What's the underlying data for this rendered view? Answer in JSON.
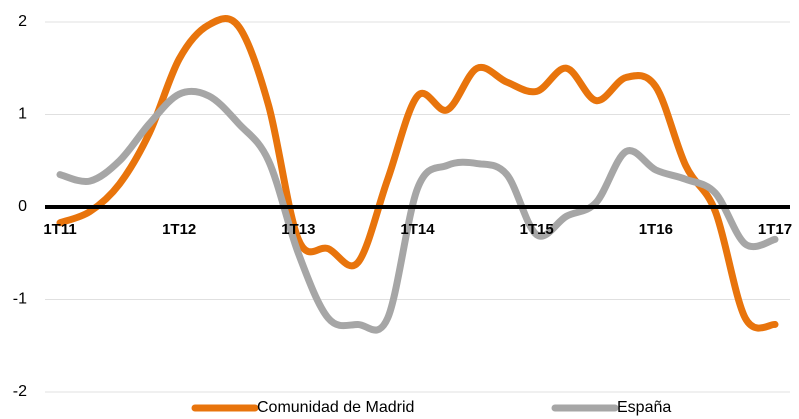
{
  "chart_data": {
    "type": "line",
    "categories": [
      "1T11",
      null,
      null,
      null,
      "1T12",
      null,
      null,
      null,
      "1T13",
      null,
      null,
      null,
      "1T14",
      null,
      null,
      null,
      "1T15",
      null,
      null,
      null,
      "1T16",
      null,
      null,
      null,
      "1T17"
    ],
    "series": [
      {
        "name": "Comunidad de Madrid",
        "color": "#e8740c",
        "values": [
          -0.17,
          -0.05,
          0.25,
          0.8,
          1.6,
          1.97,
          1.95,
          1.1,
          -0.35,
          -0.45,
          -0.6,
          0.3,
          1.2,
          1.05,
          1.5,
          1.35,
          1.25,
          1.5,
          1.15,
          1.4,
          1.3,
          0.45,
          -0.05,
          -1.2,
          -1.27
        ]
      },
      {
        "name": "España",
        "color": "#a6a6a6",
        "values": [
          0.35,
          0.28,
          0.5,
          0.9,
          1.22,
          1.2,
          0.9,
          0.5,
          -0.5,
          -1.2,
          -1.27,
          -1.2,
          0.2,
          0.45,
          0.47,
          0.35,
          -0.3,
          -0.1,
          0.05,
          0.6,
          0.4,
          0.3,
          0.15,
          -0.4,
          -0.35
        ]
      }
    ],
    "ylim": [
      -2,
      2
    ],
    "yticks": [
      -2,
      -1,
      0,
      1,
      2
    ],
    "grid": true,
    "legend": "bottom"
  }
}
